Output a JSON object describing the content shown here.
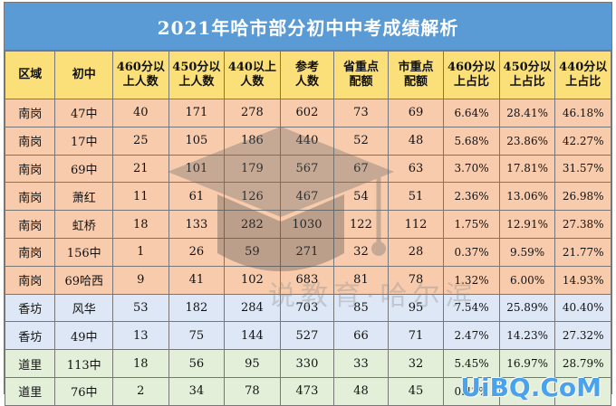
{
  "title": "2021年哈市部分初中中考成绩解析",
  "headers": [
    {
      "l1": "区域",
      "l2": ""
    },
    {
      "l1": "初中",
      "l2": ""
    },
    {
      "l1": "460分以",
      "l2": "上人数"
    },
    {
      "l1": "450分以",
      "l2": "上人数"
    },
    {
      "l1": "440以上",
      "l2": "人数"
    },
    {
      "l1": "参考",
      "l2": "人数"
    },
    {
      "l1": "省重点",
      "l2": "配额"
    },
    {
      "l1": "市重点",
      "l2": "配额"
    },
    {
      "l1": "460分以",
      "l2": "上占比"
    },
    {
      "l1": "450分以",
      "l2": "上占比"
    },
    {
      "l1": "440分以",
      "l2": "上占比"
    }
  ],
  "rows": [
    {
      "group": "nangang",
      "cells": [
        "南岗",
        "47中",
        "40",
        "171",
        "278",
        "602",
        "73",
        "69",
        "6.64%",
        "28.41%",
        "46.18%"
      ]
    },
    {
      "group": "nangang",
      "cells": [
        "南岗",
        "17中",
        "25",
        "105",
        "186",
        "440",
        "52",
        "48",
        "5.68%",
        "23.86%",
        "42.27%"
      ]
    },
    {
      "group": "nangang",
      "cells": [
        "南岗",
        "69中",
        "21",
        "101",
        "179",
        "567",
        "67",
        "63",
        "3.70%",
        "17.81%",
        "31.57%"
      ]
    },
    {
      "group": "nangang",
      "cells": [
        "南岗",
        "萧红",
        "11",
        "61",
        "126",
        "467",
        "54",
        "51",
        "2.36%",
        "13.06%",
        "26.98%"
      ]
    },
    {
      "group": "nangang",
      "cells": [
        "南岗",
        "虹桥",
        "18",
        "133",
        "282",
        "1030",
        "122",
        "112",
        "1.75%",
        "12.91%",
        "27.38%"
      ]
    },
    {
      "group": "nangang",
      "cells": [
        "南岗",
        "156中",
        "1",
        "26",
        "59",
        "271",
        "32",
        "28",
        "0.37%",
        "9.59%",
        "21.77%"
      ]
    },
    {
      "group": "nangang",
      "cells": [
        "南岗",
        "69哈西",
        "9",
        "41",
        "102",
        "683",
        "81",
        "78",
        "1.32%",
        "6.00%",
        "14.93%"
      ]
    },
    {
      "group": "xiangfang",
      "cells": [
        "香坊",
        "风华",
        "53",
        "182",
        "284",
        "703",
        "85",
        "95",
        "7.54%",
        "25.89%",
        "40.40%"
      ]
    },
    {
      "group": "xiangfang",
      "cells": [
        "香坊",
        "49中",
        "13",
        "75",
        "144",
        "527",
        "66",
        "71",
        "2.47%",
        "14.23%",
        "27.32%"
      ]
    },
    {
      "group": "daoli",
      "cells": [
        "道里",
        "113中",
        "18",
        "56",
        "95",
        "330",
        "33",
        "32",
        "5.45%",
        "16.97%",
        "28.79%"
      ]
    },
    {
      "group": "daoli",
      "cells": [
        "道里",
        "76中",
        "2",
        "34",
        "78",
        "473",
        "48",
        "45",
        "0.42%",
        "",
        ""
      ]
    }
  ],
  "watermark": {
    "text": "说教育·哈尔滨",
    "site": "UiBQ.CoM"
  },
  "colors": {
    "title_bg": "#5b9bd5",
    "header_bg": "#fbe07a",
    "nangang": "#f8cbad",
    "xiangfang": "#dde7f5",
    "daoli": "#e3efd9",
    "site": "#4aa3ea"
  }
}
